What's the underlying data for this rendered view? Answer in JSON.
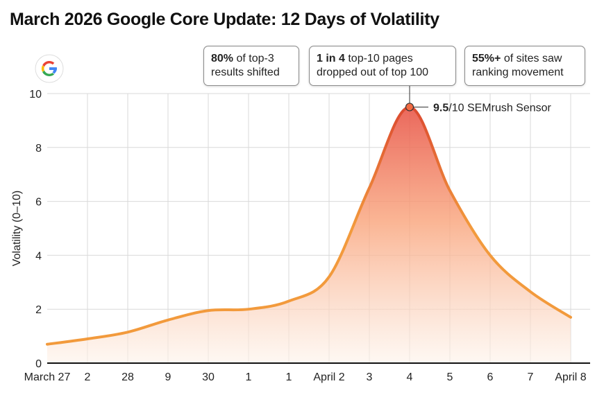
{
  "chart_data": {
    "type": "area",
    "title": "March 2026 Google Core Update: 12 Days of Volatility",
    "ylabel": "Volatility (0–10)",
    "xlabel": "",
    "ylim": [
      0,
      10
    ],
    "yticks": [
      0,
      2,
      4,
      6,
      8,
      10
    ],
    "grid": true,
    "categories": [
      "March 27",
      "2",
      "28",
      "9",
      "30",
      "1",
      "1",
      "April 2",
      "3",
      "4",
      "5",
      "6",
      "7",
      "April 8"
    ],
    "values": [
      0.7,
      0.9,
      1.15,
      1.6,
      1.95,
      2.0,
      2.3,
      3.2,
      6.5,
      9.5,
      6.4,
      4.0,
      2.65,
      1.7
    ],
    "peak_annotation": {
      "value_bold": "9.5",
      "text": "/10 SEMrush Sensor"
    },
    "colors": {
      "line_low": "#f29a3c",
      "line_high": "#d9402e",
      "fill_top": "#e8574a",
      "fill_bottom": "#fdf3ea",
      "marker": "#f26b43"
    }
  },
  "callouts": [
    {
      "bold": "80%",
      "line1": " of top-3",
      "line2": "results shifted"
    },
    {
      "bold": "1 in 4",
      "line1": " top-10 pages",
      "line2": "dropped out of top 100"
    },
    {
      "bold": "55%+",
      "line1": " of sites saw",
      "line2": "ranking movement"
    }
  ],
  "logo": "google-g-icon"
}
